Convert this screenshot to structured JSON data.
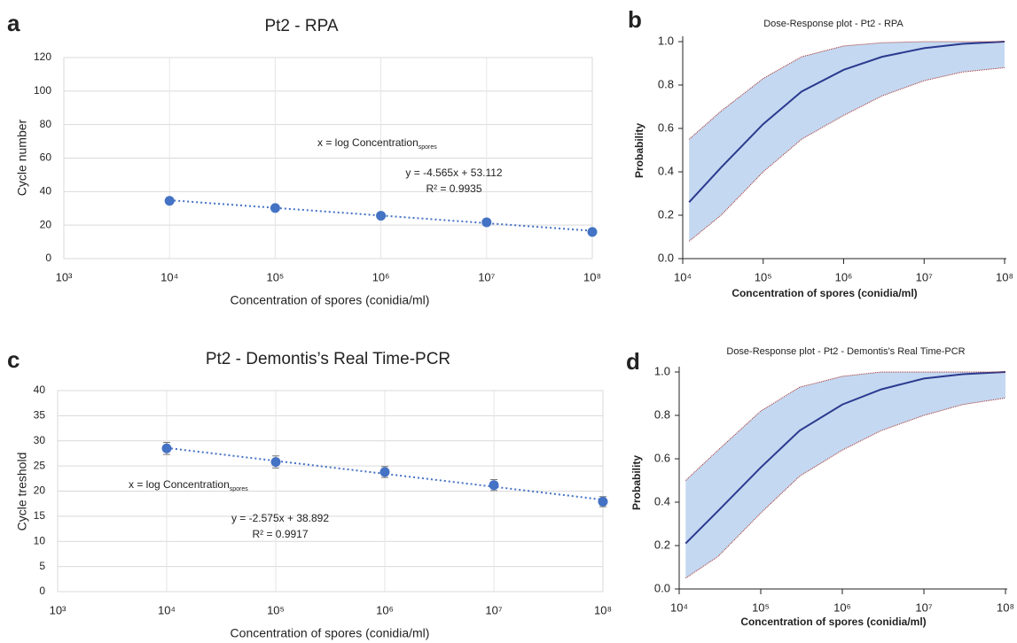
{
  "chart_data": [
    {
      "type": "scatter",
      "panel_label": "a",
      "title": "Pt2 - RPA",
      "x_label": "Concentration of spores (conidia/ml)",
      "y_label": "Cycle number",
      "x": [
        10000,
        100000,
        1000000,
        10000000,
        100000000
      ],
      "values": [
        34.5,
        30.2,
        25.6,
        21.7,
        15.9
      ],
      "color": "#4472c4",
      "xscale": "log",
      "xlim": [
        1000,
        100000000
      ],
      "xticks": [
        {
          "value": 1000,
          "label": "10³"
        },
        {
          "value": 10000,
          "label": "10⁴"
        },
        {
          "value": 100000,
          "label": "10⁵"
        },
        {
          "value": 1000000,
          "label": "10⁶"
        },
        {
          "value": 10000000,
          "label": "10⁷"
        },
        {
          "value": 100000000,
          "label": "10⁸"
        }
      ],
      "ylim": [
        0,
        120
      ],
      "yticks": [
        0,
        20,
        40,
        60,
        80,
        100,
        120
      ],
      "grid": true,
      "trendline": {
        "slope": -4.565,
        "intercept": 53.112,
        "equation": "y = -4.565x + 53.112",
        "r2": "R² = 0.9935"
      },
      "annotation": {
        "text": "x = log Concentration",
        "subscript": "spores"
      }
    },
    {
      "type": "band",
      "panel_label": "b",
      "title": "Dose-Response plot - Pt2 - RPA",
      "x_label": "Concentration of spores (conidia/ml)",
      "y_label": "Probability",
      "x": [
        12000,
        30000,
        100000,
        300000,
        1000000,
        3000000,
        10000000,
        30000000,
        100000000
      ],
      "series": [
        {
          "color": "#2b3a8f",
          "values": [
            0.26,
            0.42,
            0.62,
            0.77,
            0.87,
            0.93,
            0.97,
            0.99,
            1.0
          ]
        },
        {
          "color": "#a0302e",
          "values": [
            0.55,
            0.68,
            0.83,
            0.93,
            0.98,
            0.995,
            1.0,
            1.0,
            1.0
          ]
        },
        {
          "color": "#a0302e",
          "values": [
            0.08,
            0.2,
            0.4,
            0.55,
            0.66,
            0.75,
            0.82,
            0.86,
            0.88
          ]
        }
      ],
      "band_color": "#c4d8f1",
      "xscale": "log",
      "xlim": [
        10000,
        100000000
      ],
      "xticks": [
        {
          "value": 10000,
          "label": "10⁴"
        },
        {
          "value": 100000,
          "label": "10⁵"
        },
        {
          "value": 1000000,
          "label": "10⁶"
        },
        {
          "value": 10000000,
          "label": "10⁷"
        },
        {
          "value": 100000000,
          "label": "10⁸"
        }
      ],
      "ylim": [
        0,
        1
      ],
      "yticks": [
        {
          "value": 0,
          "label": "0.0"
        },
        0.2,
        0.4,
        0.6,
        0.8,
        {
          "value": 1,
          "label": "1.0"
        }
      ],
      "grid": false
    },
    {
      "type": "scatter",
      "panel_label": "c",
      "title": "Pt2 - Demontis’s Real Time-PCR",
      "x_label": "Concentration of spores (conidia/ml)",
      "y_label": "Cycle treshold",
      "x": [
        10000,
        100000,
        1000000,
        10000000,
        100000000
      ],
      "values": [
        28.5,
        25.8,
        23.8,
        21.2,
        17.9
      ],
      "errors": [
        1.2,
        1.2,
        1.1,
        1.1,
        1.0
      ],
      "color": "#4472c4",
      "xscale": "log",
      "xlim": [
        1000,
        100000000
      ],
      "xticks": [
        {
          "value": 1000,
          "label": "10³"
        },
        {
          "value": 10000,
          "label": "10⁴"
        },
        {
          "value": 100000,
          "label": "10⁵"
        },
        {
          "value": 1000000,
          "label": "10⁶"
        },
        {
          "value": 10000000,
          "label": "10⁷"
        },
        {
          "value": 100000000,
          "label": "10⁸"
        }
      ],
      "ylim": [
        0,
        40
      ],
      "yticks": [
        0,
        5,
        10,
        15,
        20,
        25,
        30,
        35,
        40
      ],
      "grid": true,
      "trendline": {
        "slope": -2.575,
        "intercept": 38.892,
        "equation": "y = -2.575x + 38.892",
        "r2": "R² = 0.9917"
      },
      "annotation": {
        "text": "x = log Concentration",
        "subscript": "spores"
      }
    },
    {
      "type": "band",
      "panel_label": "d",
      "title": "Dose-Response plot - Pt2 - Demontis's Real Time-PCR",
      "x_label": "Concentration of spores (conidia/ml)",
      "y_label": "Probability",
      "x": [
        12000,
        30000,
        100000,
        300000,
        1000000,
        3000000,
        10000000,
        30000000,
        100000000
      ],
      "series": [
        {
          "color": "#2b3a8f",
          "values": [
            0.21,
            0.36,
            0.56,
            0.73,
            0.85,
            0.92,
            0.97,
            0.99,
            1.0
          ]
        },
        {
          "color": "#a0302e",
          "values": [
            0.5,
            0.64,
            0.82,
            0.93,
            0.98,
            1.0,
            1.0,
            1.0,
            1.0
          ]
        },
        {
          "color": "#a0302e",
          "values": [
            0.05,
            0.15,
            0.35,
            0.52,
            0.64,
            0.73,
            0.8,
            0.85,
            0.88
          ]
        }
      ],
      "band_color": "#c4d8f1",
      "xscale": "log",
      "xlim": [
        10000,
        100000000
      ],
      "xticks": [
        {
          "value": 10000,
          "label": "10⁴"
        },
        {
          "value": 100000,
          "label": "10⁵"
        },
        {
          "value": 1000000,
          "label": "10⁶"
        },
        {
          "value": 10000000,
          "label": "10⁷"
        },
        {
          "value": 100000000,
          "label": "10⁸"
        }
      ],
      "ylim": [
        0,
        1
      ],
      "yticks": [
        {
          "value": 0,
          "label": "0.0"
        },
        0.2,
        0.4,
        0.6,
        0.8,
        {
          "value": 1,
          "label": "1.0"
        }
      ],
      "grid": false
    }
  ]
}
